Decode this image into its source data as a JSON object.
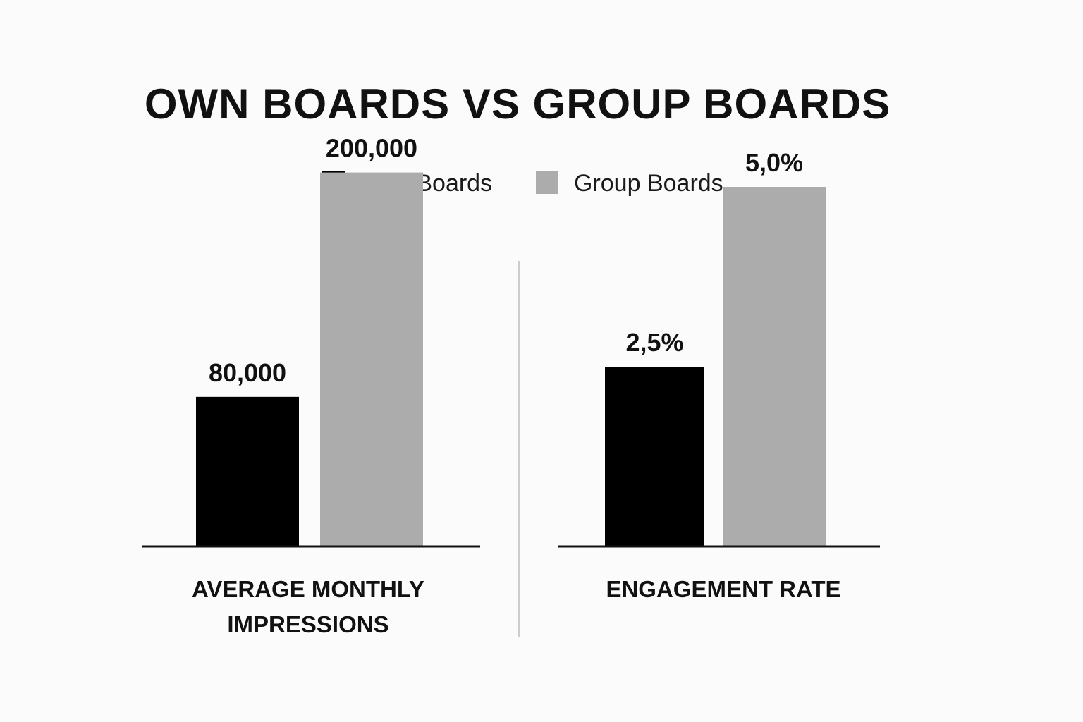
{
  "title": "OWN BOARDS VS GROUP BOARDS",
  "legend": [
    {
      "label": "Own Boards",
      "color": "#000000"
    },
    {
      "label": "Group Boards",
      "color": "#acacac"
    }
  ],
  "colors": {
    "divider": "#cccccc",
    "axis": "#111111"
  },
  "chart_data": [
    {
      "type": "bar",
      "title": "AVERAGE MONTHLY IMPRESSIONS",
      "xlabel_lines": [
        "AVERAGE MONTHLY",
        "IMPRESSIONS"
      ],
      "categories": [
        "Own Boards",
        "Group Boards"
      ],
      "values": [
        80000,
        200000
      ],
      "value_labels": [
        "80,000",
        "200,000"
      ],
      "ylim": [
        0,
        250000
      ],
      "grid": false,
      "legend_position": "top-center"
    },
    {
      "type": "bar",
      "title": "ENGAGEMENT RATE",
      "xlabel_lines": [
        "ENGAGEMENT RATE"
      ],
      "categories": [
        "Own Boards",
        "Group Boards"
      ],
      "values": [
        2.5,
        5.0
      ],
      "value_labels": [
        "2,5%",
        "5,0%"
      ],
      "ylim": [
        0,
        6.5
      ],
      "grid": false,
      "legend_position": "top-center"
    }
  ]
}
